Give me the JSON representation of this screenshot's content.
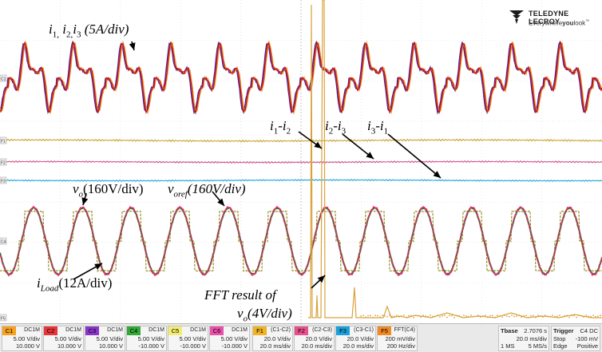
{
  "brand": {
    "name": "TELEDYNE LECROY",
    "tagline_prefix": "Everywhere",
    "tagline_bold": "you",
    "tagline_suffix": "look",
    "tm": "™"
  },
  "annotations": {
    "currents": {
      "i1": "i",
      "s1": "1,",
      "i2": " i",
      "s2": "2,",
      "i3": "i",
      "s3": "3",
      "scale": " (5A/div)"
    },
    "diff12": {
      "a": "i",
      "sa": "1",
      "dash": "-",
      "b": "i",
      "sb": "2"
    },
    "diff23": {
      "a": "i",
      "sa": "2",
      "dash": "-",
      "b": "i",
      "sb": "3"
    },
    "diff31": {
      "a": "i",
      "sa": "3",
      "dash": "-",
      "b": "i",
      "sb": "1"
    },
    "vo": {
      "v": "v",
      "s": "o",
      "scale": "(160V/div)"
    },
    "voref": {
      "v": "v",
      "s": "oref",
      "scale": "(160V/div)"
    },
    "iload": {
      "i": "i",
      "s": "Load",
      "scale": "(12A/div)"
    },
    "fft": {
      "line1": "FFT result of",
      "v": "v",
      "s": "o",
      "scale": "(4V/div)"
    }
  },
  "channels": [
    {
      "tag": "C1",
      "coupling": "DC1M",
      "vdiv": "5.00 V/div",
      "offset": "10.000 V",
      "color": "#f6a11f"
    },
    {
      "tag": "C2",
      "coupling": "DC1M",
      "vdiv": "5.00 V/div",
      "offset": "10.000 V",
      "color": "#e8353a"
    },
    {
      "tag": "C3",
      "coupling": "DC1M",
      "vdiv": "5.00 V/div",
      "offset": "10.000 V",
      "color": "#8a35c9"
    },
    {
      "tag": "C4",
      "coupling": "DC1M",
      "vdiv": "5.00 V/div",
      "offset": "-10.000 V",
      "color": "#34a838"
    },
    {
      "tag": "C5",
      "coupling": "DC1M",
      "vdiv": "5.00 V/div",
      "offset": "-10.000 V",
      "color": "#f2ec74"
    },
    {
      "tag": "C6",
      "coupling": "DC1M",
      "vdiv": "5.00 V/div",
      "offset": "-10.000 V",
      "color": "#ea4fa9"
    }
  ],
  "functions": [
    {
      "tag": "F1",
      "name": "(C1-C2)",
      "vdiv": "20.0 V/div",
      "time": "20.0 ms/div",
      "color": "#f0b323"
    },
    {
      "tag": "F2",
      "name": "(C2-C3)",
      "vdiv": "20.0 V/div",
      "time": "20.0 ms/div",
      "color": "#e8508c"
    },
    {
      "tag": "F3",
      "name": "(C3-C1)",
      "vdiv": "20.0 V/div",
      "time": "20.0 ms/div",
      "color": "#1aa0dc"
    },
    {
      "tag": "F5",
      "name": "FFT(C4)",
      "vdiv": "200 mV/div",
      "time": "200 Hz/div",
      "color": "#f08a24"
    }
  ],
  "timebase": {
    "label": "Tbase",
    "delay": "2.7076 s",
    "tdiv": "20.0 ms/div",
    "samples": "1 MS",
    "rate": "5 MS/s"
  },
  "trigger": {
    "label": "Trigger",
    "source": "C4 DC",
    "mode": "Stop",
    "level": "-100 mV",
    "type": "Edge",
    "slope": "Positive"
  },
  "trace_colors": {
    "i1": "#e8962a",
    "i2": "#c0141e",
    "i3": "#5a1f8f",
    "f1": "#c9a227",
    "f2": "#d4548e",
    "f3": "#1aa0dc",
    "vo": "#e0306a",
    "voref": "#2e7d32",
    "iload": "#8a8a10",
    "fft": "#d9a23c"
  },
  "left_markers": [
    "C1",
    "F1",
    "F2",
    "F3",
    "C4",
    "F5"
  ]
}
